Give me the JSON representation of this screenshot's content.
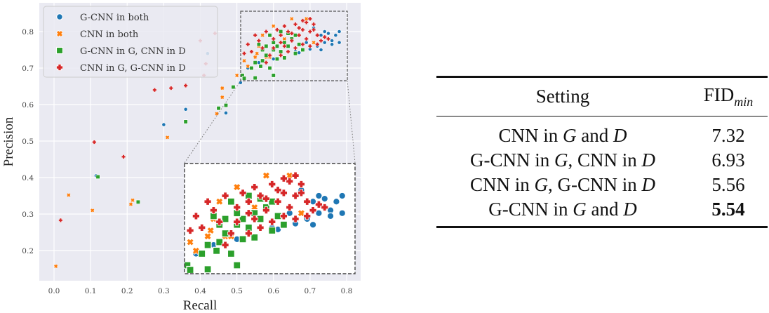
{
  "chart_data": [
    {
      "type": "scatter",
      "title": "",
      "xlabel": "Recall",
      "ylabel": "Precision",
      "xlim": [
        -0.05,
        0.83
      ],
      "ylim": [
        0.13,
        0.86
      ],
      "xticks": [
        "0.0",
        "0.1",
        "0.2",
        "0.3",
        "0.4",
        "0.5",
        "0.6",
        "0.7",
        "0.8"
      ],
      "yticks": [
        "0.2",
        "0.3",
        "0.4",
        "0.5",
        "0.6",
        "0.7",
        "0.8"
      ],
      "grid": true,
      "background": "#eaeaf2",
      "legend_position": "upper left",
      "inset": {
        "zoom_region": {
          "x": [
            0.51,
            0.8
          ],
          "y": [
            0.67,
            0.86
          ]
        },
        "placement": "lower right"
      },
      "series": [
        {
          "name": "G-CNN in both",
          "marker": "circle",
          "color": "#1f77b4",
          "points": [
            [
              0.3,
              0.545
            ],
            [
              0.36,
              0.587
            ],
            [
              0.47,
              0.577
            ],
            [
              0.51,
              0.66
            ],
            [
              0.115,
              0.405
            ],
            [
              0.42,
              0.74
            ],
            [
              0.53,
              0.7
            ],
            [
              0.56,
              0.715
            ],
            [
              0.6,
              0.725
            ],
            [
              0.66,
              0.745
            ],
            [
              0.7,
              0.752
            ],
            [
              0.72,
              0.76
            ],
            [
              0.74,
              0.77
            ],
            [
              0.75,
              0.78
            ],
            [
              0.76,
              0.775
            ],
            [
              0.77,
              0.79
            ],
            [
              0.73,
              0.79
            ],
            [
              0.78,
              0.8
            ],
            [
              0.71,
              0.81
            ],
            [
              0.74,
              0.8
            ],
            [
              0.76,
              0.765
            ],
            [
              0.73,
              0.75
            ],
            [
              0.69,
              0.77
            ],
            [
              0.67,
              0.742
            ],
            [
              0.75,
              0.795
            ],
            [
              0.78,
              0.77
            ]
          ]
        },
        {
          "name": "CNN in both",
          "marker": "x",
          "color": "#ff7f0e",
          "points": [
            [
              0.005,
              0.157
            ],
            [
              0.04,
              0.352
            ],
            [
              0.105,
              0.31
            ],
            [
              0.21,
              0.327
            ],
            [
              0.215,
              0.338
            ],
            [
              0.31,
              0.51
            ],
            [
              0.445,
              0.575
            ],
            [
              0.46,
              0.62
            ],
            [
              0.46,
              0.645
            ],
            [
              0.5,
              0.68
            ],
            [
              0.52,
              0.72
            ],
            [
              0.53,
              0.705
            ],
            [
              0.555,
              0.74
            ],
            [
              0.56,
              0.76
            ],
            [
              0.58,
              0.73
            ],
            [
              0.6,
              0.815
            ],
            [
              0.65,
              0.835
            ],
            [
              0.63,
              0.78
            ],
            [
              0.69,
              0.835
            ],
            [
              0.71,
              0.77
            ],
            [
              0.59,
              0.73
            ],
            [
              0.55,
              0.73
            ],
            [
              0.57,
              0.79
            ]
          ]
        },
        {
          "name": "G-CNN in G, CNN in D",
          "marker": "square",
          "color": "#2ca02c",
          "points": [
            [
              0.12,
              0.402
            ],
            [
              0.23,
              0.333
            ],
            [
              0.36,
              0.553
            ],
            [
              0.45,
              0.59
            ],
            [
              0.47,
              0.598
            ],
            [
              0.49,
              0.648
            ],
            [
              0.515,
              0.68
            ],
            [
              0.55,
              0.673
            ],
            [
              0.54,
              0.7
            ],
            [
              0.55,
              0.715
            ],
            [
              0.565,
              0.705
            ],
            [
              0.57,
              0.72
            ],
            [
              0.58,
              0.735
            ],
            [
              0.6,
              0.75
            ],
            [
              0.61,
              0.76
            ],
            [
              0.62,
              0.745
            ],
            [
              0.63,
              0.77
            ],
            [
              0.64,
              0.76
            ],
            [
              0.65,
              0.78
            ],
            [
              0.66,
              0.74
            ],
            [
              0.67,
              0.765
            ],
            [
              0.59,
              0.79
            ],
            [
              0.62,
              0.8
            ],
            [
              0.64,
              0.795
            ],
            [
              0.6,
              0.77
            ],
            [
              0.57,
              0.75
            ],
            [
              0.56,
              0.765
            ],
            [
              0.68,
              0.75
            ],
            [
              0.61,
              0.725
            ],
            [
              0.63,
              0.728
            ],
            [
              0.59,
              0.7
            ],
            [
              0.52,
              0.672
            ],
            [
              0.6,
              0.68
            ],
            [
              0.58,
              0.76
            ],
            [
              0.66,
              0.79
            ]
          ]
        },
        {
          "name": "CNN in G, G-CNN in D",
          "marker": "plus",
          "color": "#d62728",
          "points": [
            [
              0.018,
              0.283
            ],
            [
              0.11,
              0.497
            ],
            [
              0.19,
              0.457
            ],
            [
              0.275,
              0.64
            ],
            [
              0.32,
              0.645
            ],
            [
              0.36,
              0.652
            ],
            [
              0.41,
              0.68
            ],
            [
              0.415,
              0.712
            ],
            [
              0.4,
              0.775
            ],
            [
              0.44,
              0.795
            ],
            [
              0.52,
              0.74
            ],
            [
              0.53,
              0.765
            ],
            [
              0.55,
              0.79
            ],
            [
              0.57,
              0.755
            ],
            [
              0.58,
              0.8
            ],
            [
              0.6,
              0.78
            ],
            [
              0.62,
              0.79
            ],
            [
              0.63,
              0.815
            ],
            [
              0.64,
              0.8
            ],
            [
              0.65,
              0.775
            ],
            [
              0.66,
              0.82
            ],
            [
              0.67,
              0.79
            ],
            [
              0.68,
              0.805
            ],
            [
              0.69,
              0.78
            ],
            [
              0.7,
              0.8
            ],
            [
              0.71,
              0.82
            ],
            [
              0.72,
              0.79
            ],
            [
              0.73,
              0.775
            ],
            [
              0.7,
              0.76
            ],
            [
              0.68,
              0.765
            ],
            [
              0.66,
              0.755
            ],
            [
              0.64,
              0.745
            ],
            [
              0.62,
              0.77
            ],
            [
              0.6,
              0.755
            ],
            [
              0.59,
              0.735
            ],
            [
              0.67,
              0.81
            ],
            [
              0.69,
              0.825
            ],
            [
              0.71,
              0.805
            ],
            [
              0.74,
              0.785
            ],
            [
              0.72,
              0.765
            ],
            [
              0.65,
              0.795
            ],
            [
              0.63,
              0.76
            ],
            [
              0.61,
              0.805
            ],
            [
              0.56,
              0.775
            ],
            [
              0.58,
              0.715
            ],
            [
              0.54,
              0.745
            ],
            [
              0.7,
              0.835
            ],
            [
              0.68,
              0.83
            ],
            [
              0.75,
              0.78
            ],
            [
              0.62,
              0.735
            ]
          ]
        }
      ]
    },
    {
      "type": "table",
      "columns": [
        "Setting",
        "FID_min"
      ],
      "rows": [
        [
          "CNN in G and D",
          "7.32"
        ],
        [
          "G-CNN in G, CNN in D",
          "6.93"
        ],
        [
          "CNN in G, G-CNN in D",
          "5.56"
        ],
        [
          "G-CNN in G and D",
          "5.54"
        ]
      ],
      "best_row": 3
    }
  ],
  "legend": [
    "G-CNN in both",
    "CNN in both",
    "G-CNN in G, CNN in D",
    "CNN in G, G-CNN in D"
  ],
  "axes": {
    "xlabel": "Recall",
    "ylabel": "Precision"
  },
  "table": {
    "header": {
      "setting": "Setting",
      "fid_main": "FID",
      "fid_sub": "min"
    },
    "rows": [
      {
        "pre": "CNN in ",
        "g": "G",
        "mid": " and ",
        "d": "D",
        "val": "7.32"
      },
      {
        "pre": "G-CNN in ",
        "g": "G",
        "mid": ", CNN in ",
        "d": "D",
        "val": "6.93"
      },
      {
        "pre": "CNN in ",
        "g": "G",
        "mid": ", G-CNN in ",
        "d": "D",
        "val": "5.56"
      },
      {
        "pre": "G-CNN in ",
        "g": "G",
        "mid": " and ",
        "d": "D",
        "val": "5.54"
      }
    ]
  }
}
